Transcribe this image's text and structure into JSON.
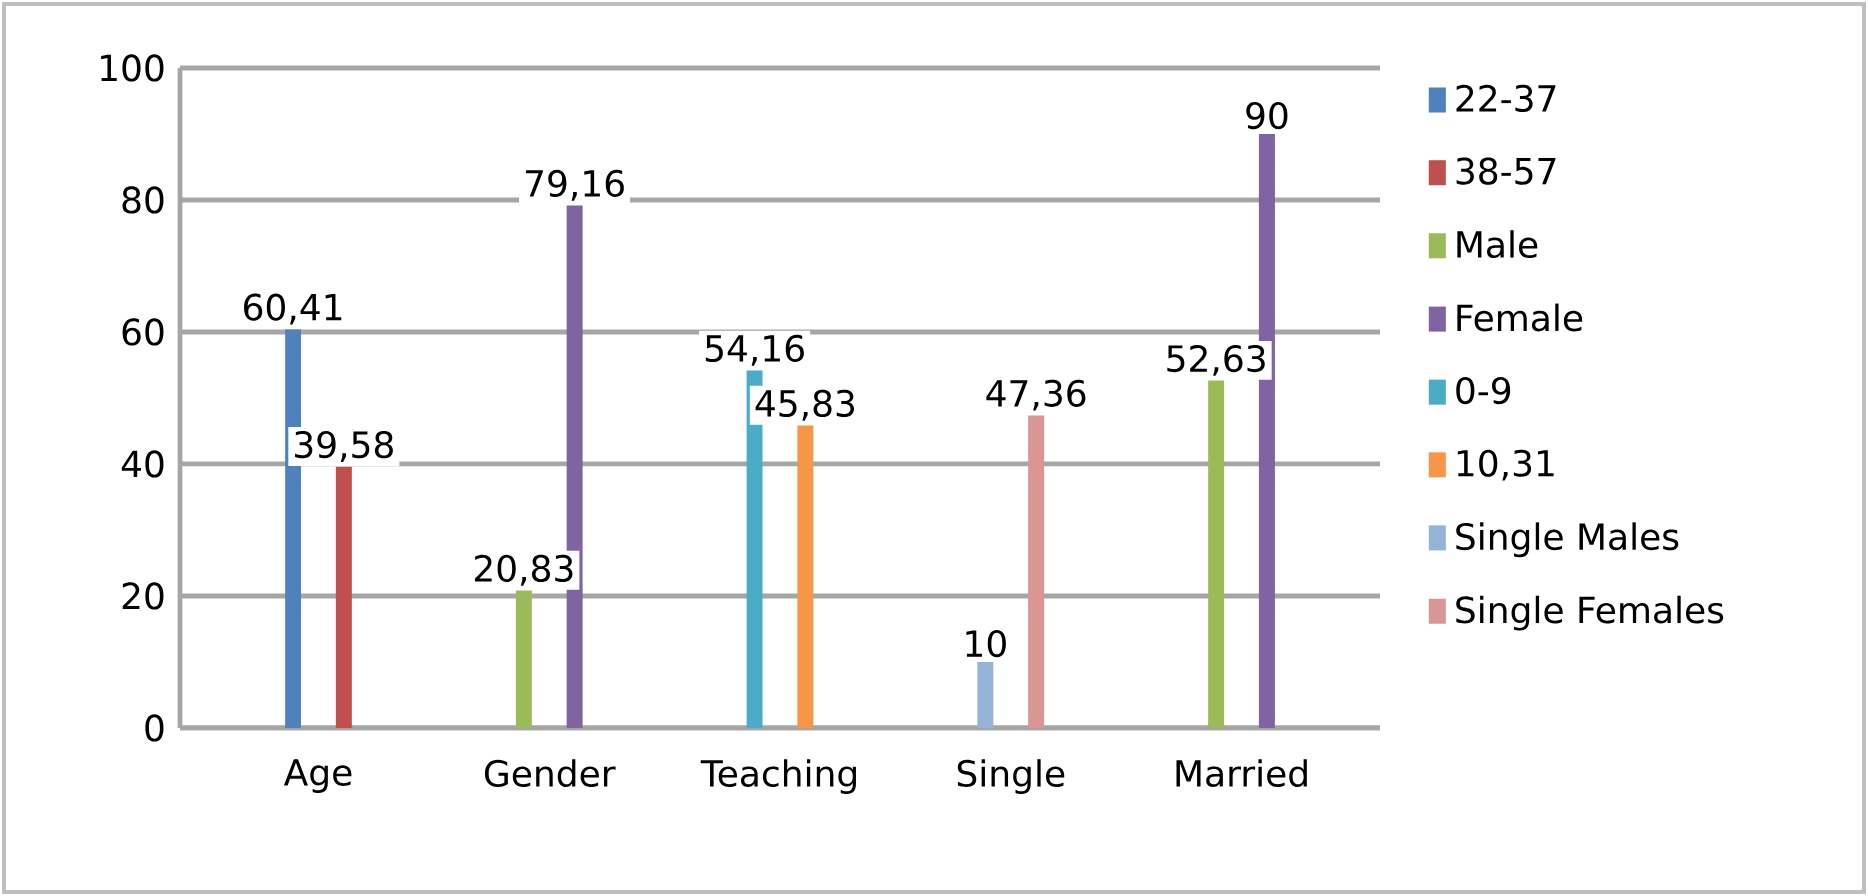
{
  "chart_data": {
    "type": "bar",
    "categories": [
      "Age",
      "Gender",
      "Teaching",
      "Single",
      "Married"
    ],
    "series": [
      {
        "name": "22-37",
        "color": "#4f81bd",
        "values": [
          60.41,
          null,
          null,
          null,
          null
        ],
        "value_labels": [
          "60,41",
          null,
          null,
          null,
          null
        ]
      },
      {
        "name": "38-57",
        "color": "#c0504d",
        "values": [
          39.58,
          null,
          null,
          null,
          null
        ],
        "value_labels": [
          "39,58",
          null,
          null,
          null,
          null
        ]
      },
      {
        "name": "Male",
        "color": "#9bbb59",
        "values": [
          null,
          20.83,
          null,
          null,
          52.63
        ],
        "value_labels": [
          null,
          "20,83",
          null,
          null,
          "52,63"
        ]
      },
      {
        "name": "Female",
        "color": "#8064a2",
        "values": [
          null,
          79.16,
          null,
          null,
          90
        ],
        "value_labels": [
          null,
          "79,16",
          null,
          null,
          "90"
        ]
      },
      {
        "name": "0-9",
        "color": "#4bacc6",
        "values": [
          null,
          null,
          54.16,
          null,
          null
        ],
        "value_labels": [
          null,
          null,
          "54,16",
          null,
          null
        ]
      },
      {
        "name": "10,31",
        "color": "#f79646",
        "values": [
          null,
          null,
          45.83,
          null,
          null
        ],
        "value_labels": [
          null,
          null,
          "45,83",
          null,
          null
        ]
      },
      {
        "name": "Single Males",
        "color": "#95b3d7",
        "values": [
          null,
          null,
          null,
          10,
          null
        ],
        "value_labels": [
          null,
          null,
          null,
          "10",
          null
        ]
      },
      {
        "name": "Single Females",
        "color": "#d99694",
        "values": [
          null,
          null,
          null,
          47.36,
          null
        ],
        "value_labels": [
          null,
          null,
          null,
          "47,36",
          null
        ]
      }
    ],
    "ylim": [
      0,
      100
    ],
    "yticks": [
      0,
      20,
      40,
      60,
      80,
      100
    ],
    "grid": "y",
    "legend": "right"
  }
}
